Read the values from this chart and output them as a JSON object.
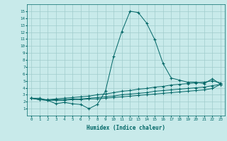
{
  "xlabel": "Humidex (Indice chaleur)",
  "x_values": [
    0,
    1,
    2,
    3,
    4,
    5,
    6,
    7,
    8,
    9,
    10,
    11,
    12,
    13,
    14,
    15,
    16,
    17,
    18,
    19,
    20,
    21,
    22,
    23
  ],
  "line1": [
    2.5,
    2.5,
    2.2,
    1.7,
    1.9,
    1.7,
    1.6,
    1.0,
    1.6,
    3.5,
    8.5,
    12.1,
    15.0,
    14.8,
    13.3,
    10.9,
    7.5,
    5.4,
    5.1,
    4.8,
    4.8,
    4.6,
    5.3,
    4.5
  ],
  "line2": [
    2.5,
    2.3,
    2.3,
    2.4,
    2.5,
    2.6,
    2.7,
    2.8,
    3.0,
    3.1,
    3.3,
    3.5,
    3.6,
    3.8,
    3.9,
    4.1,
    4.2,
    4.4,
    4.5,
    4.6,
    4.7,
    4.8,
    5.0,
    4.7
  ],
  "line3": [
    2.5,
    2.3,
    2.2,
    2.3,
    2.3,
    2.4,
    2.4,
    2.5,
    2.6,
    2.7,
    2.8,
    3.0,
    3.1,
    3.2,
    3.3,
    3.5,
    3.6,
    3.7,
    3.8,
    3.9,
    4.0,
    4.1,
    4.3,
    4.5
  ],
  "line4": [
    2.5,
    2.3,
    2.2,
    2.2,
    2.2,
    2.3,
    2.3,
    2.4,
    2.4,
    2.5,
    2.6,
    2.7,
    2.8,
    2.9,
    3.0,
    3.1,
    3.2,
    3.3,
    3.4,
    3.5,
    3.6,
    3.7,
    3.9,
    4.5
  ],
  "line_color": "#006666",
  "bg_color": "#c8eaea",
  "grid_color": "#a0cccc",
  "ylim": [
    0,
    16
  ],
  "xlim": [
    -0.5,
    23.5
  ],
  "yticks": [
    1,
    2,
    3,
    4,
    5,
    6,
    7,
    8,
    9,
    10,
    11,
    12,
    13,
    14,
    15
  ],
  "xticks": [
    0,
    1,
    2,
    3,
    4,
    5,
    6,
    7,
    8,
    9,
    10,
    11,
    12,
    13,
    14,
    15,
    16,
    17,
    18,
    19,
    20,
    21,
    22,
    23
  ]
}
